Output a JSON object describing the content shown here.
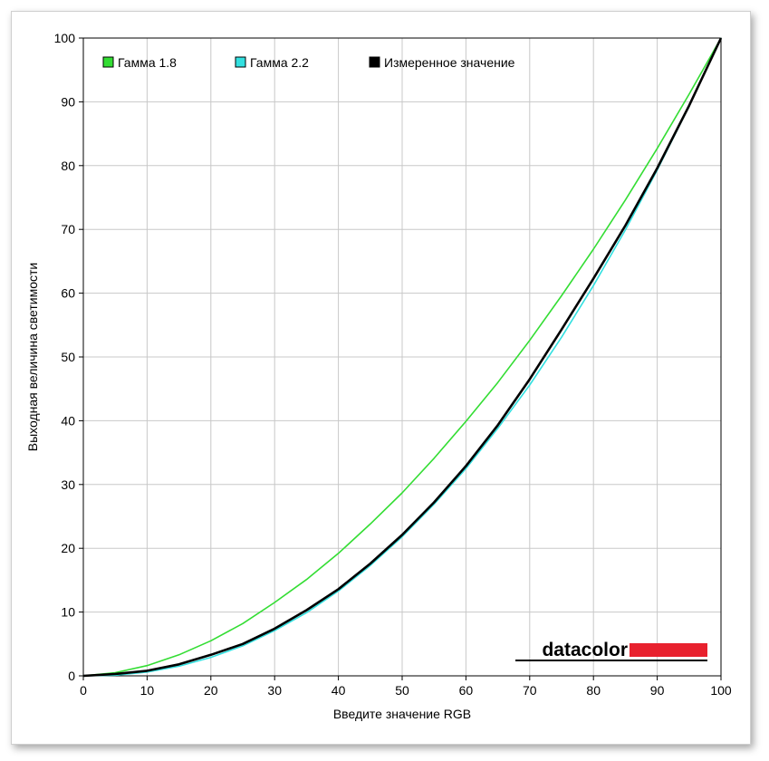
{
  "chart_data": {
    "type": "line",
    "title": "",
    "xlabel": "Введите значение RGB",
    "ylabel": "Выходная величина светимости",
    "xlim": [
      0,
      100
    ],
    "ylim": [
      0,
      100
    ],
    "x_ticks": [
      "0",
      "10",
      "20",
      "30",
      "40",
      "50",
      "60",
      "70",
      "80",
      "90",
      "100"
    ],
    "y_ticks": [
      "0",
      "10",
      "20",
      "30",
      "40",
      "50",
      "60",
      "70",
      "80",
      "90",
      "100"
    ],
    "grid": true,
    "legend_position": "top-left",
    "series": [
      {
        "name": "Гамма 1.8",
        "color": "#33dd33",
        "x": [
          0,
          5,
          10,
          15,
          20,
          25,
          30,
          35,
          40,
          45,
          50,
          55,
          60,
          65,
          70,
          75,
          80,
          85,
          90,
          95,
          100
        ],
        "y": [
          0,
          0.5,
          1.6,
          3.3,
          5.5,
          8.2,
          11.5,
          15.1,
          19.2,
          23.8,
          28.7,
          34.1,
          39.9,
          46.0,
          52.6,
          59.6,
          66.9,
          74.6,
          82.7,
          91.2,
          100
        ]
      },
      {
        "name": "Гамма 2.2",
        "color": "#33e0e0",
        "x": [
          0,
          5,
          10,
          15,
          20,
          25,
          30,
          35,
          40,
          45,
          50,
          55,
          60,
          65,
          70,
          75,
          80,
          85,
          90,
          95,
          100
        ],
        "y": [
          0,
          0.1,
          0.6,
          1.5,
          2.9,
          4.7,
          7.1,
          9.9,
          13.3,
          17.3,
          21.8,
          26.9,
          32.5,
          38.8,
          45.6,
          53.1,
          61.2,
          69.9,
          79.3,
          89.3,
          100
        ]
      },
      {
        "name": "Измеренное значение",
        "color": "#000000",
        "x": [
          0,
          5,
          10,
          15,
          20,
          25,
          30,
          35,
          40,
          45,
          50,
          55,
          60,
          65,
          70,
          75,
          80,
          85,
          90,
          95,
          100
        ],
        "y": [
          0,
          0.3,
          0.8,
          1.8,
          3.3,
          5.0,
          7.4,
          10.3,
          13.6,
          17.6,
          22.1,
          27.2,
          32.9,
          39.3,
          46.5,
          54.3,
          62.3,
          70.6,
          79.6,
          89.4,
          100
        ]
      }
    ]
  },
  "logo": {
    "text": "datacolor",
    "accent_color": "#e8212e"
  }
}
